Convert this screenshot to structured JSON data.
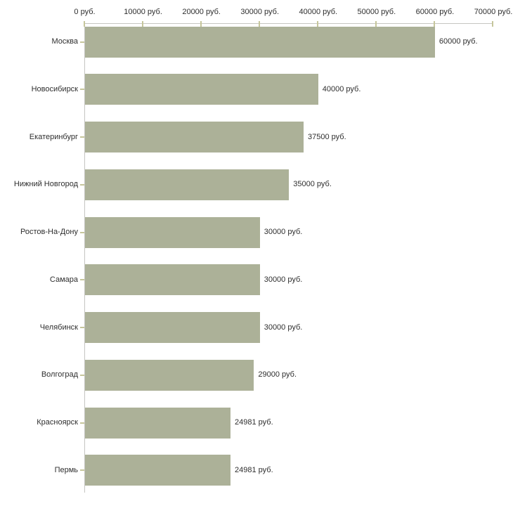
{
  "chart_data": {
    "type": "bar",
    "orientation": "horizontal",
    "title": "",
    "xlabel": "",
    "ylabel": "",
    "unit": "руб.",
    "categories": [
      "Москва",
      "Новосибирск",
      "Екатеринбург",
      "Нижний Новгород",
      "Ростов-На-Дону",
      "Самара",
      "Челябинск",
      "Волгоград",
      "Красноярск",
      "Пермь"
    ],
    "values": [
      60000,
      40000,
      37500,
      35000,
      30000,
      30000,
      30000,
      29000,
      24981,
      24981
    ],
    "value_labels": [
      "60000 руб.",
      "40000 руб.",
      "37500 руб.",
      "35000 руб.",
      "30000 руб.",
      "30000 руб.",
      "30000 руб.",
      "29000 руб.",
      "24981 руб.",
      "24981 руб."
    ],
    "x_ticks": [
      0,
      10000,
      20000,
      30000,
      40000,
      50000,
      60000,
      70000
    ],
    "x_tick_labels": [
      "0 руб.",
      "10000 руб.",
      "20000 руб.",
      "30000 руб.",
      "40000 руб.",
      "50000 руб.",
      "60000 руб.",
      "70000 руб."
    ],
    "xlim": [
      0,
      70000
    ],
    "x_axis_position": "top",
    "grid": false,
    "legend": false,
    "colors": {
      "bar": "#acb198",
      "axis_line": "#c5c5c1",
      "tick_mark": "#c6c69b",
      "text": "#2e2e2e",
      "background": "#ffffff"
    }
  }
}
